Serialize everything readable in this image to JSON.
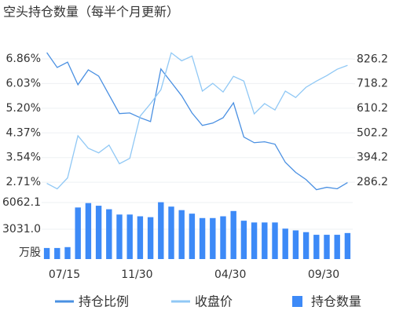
{
  "chart_data": [
    {
      "type": "line",
      "title": "空头持仓数量（每半个月更新）",
      "series": [
        {
          "name": "持仓比例",
          "color": "#4a90e2",
          "axis": "y",
          "values": [
            7.07,
            6.57,
            6.75,
            5.99,
            6.49,
            6.28,
            5.65,
            5.02,
            5.04,
            4.88,
            4.75,
            6.52,
            6.07,
            5.62,
            5.04,
            4.62,
            4.7,
            4.88,
            5.38,
            4.23,
            4.04,
            4.07,
            3.99,
            3.38,
            3.04,
            2.8,
            2.46,
            2.54,
            2.49,
            2.7
          ]
        },
        {
          "name": "收盘价",
          "color": "#90c8f5",
          "axis": "y2",
          "values": [
            281,
            257,
            305,
            490,
            435,
            415,
            449,
            367,
            391,
            576,
            631,
            692,
            854,
            819,
            840,
            686,
            720,
            682,
            751,
            730,
            586,
            631,
            603,
            686,
            658,
            703,
            730,
            754,
            782,
            799
          ]
        }
      ],
      "ylim": [
        2.45,
        7.07
      ],
      "yticks": [
        {
          "value": 2.71,
          "label": "2.71%"
        },
        {
          "value": 3.54,
          "label": "3.54%"
        },
        {
          "value": 4.37,
          "label": "4.37%"
        },
        {
          "value": 5.2,
          "label": "5.20%"
        },
        {
          "value": 6.03,
          "label": "6.03%"
        },
        {
          "value": 6.86,
          "label": "6.86%"
        }
      ],
      "y2lim": [
        252,
        855
      ],
      "y2ticks": [
        286.2,
        394.2,
        502.2,
        610.2,
        718.2,
        826.2
      ],
      "grid": true
    },
    {
      "type": "bar",
      "series": [
        {
          "name": "持仓数量",
          "color": "#3d8af7",
          "values": [
            900,
            900,
            1000,
            5500,
            6000,
            5700,
            5300,
            4700,
            4700,
            4500,
            4400,
            6100,
            5600,
            5200,
            4800,
            4300,
            4300,
            4500,
            5100,
            4000,
            3800,
            3800,
            3800,
            3100,
            2900,
            2700,
            2400,
            2400,
            2400,
            2600
          ]
        }
      ],
      "categories": [
        null,
        null,
        "07/15",
        null,
        null,
        null,
        null,
        null,
        null,
        "11/30",
        null,
        null,
        null,
        null,
        null,
        null,
        null,
        null,
        "04/30",
        null,
        null,
        null,
        null,
        null,
        null,
        null,
        null,
        "09/30",
        null,
        null
      ],
      "y_label": "万股",
      "ylim": [
        0,
        6062.1
      ],
      "yticks": [
        {
          "value": 3031.0,
          "label": "3031.0"
        },
        6062.1
      ],
      "grid": true
    }
  ]
}
